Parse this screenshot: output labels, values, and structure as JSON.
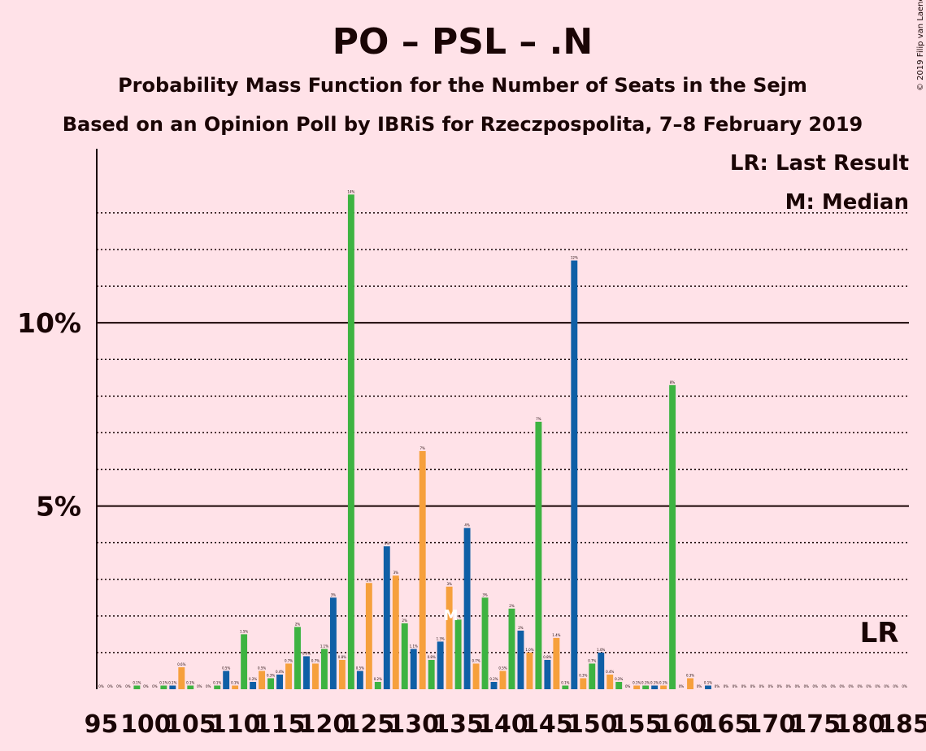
{
  "header": {
    "title": "PO – PSL – .N",
    "subtitle1": "Probability Mass Function for the Number of Seats in the Sejm",
    "subtitle2": "Based on an Opinion Poll by IBRiS for Rzeczpospolita, 7–8 February 2019"
  },
  "legend": {
    "last_result": "LR: Last Result",
    "median": "M: Median"
  },
  "copyright": "© 2019 Filip van Laenen",
  "colors": {
    "background": "#ffe2e8",
    "series": [
      "#f6a03c",
      "#3db341",
      "#0f5fa6"
    ],
    "text": "#1a0505"
  },
  "chart_data": {
    "type": "bar",
    "title": "PO – PSL – .N",
    "xlabel": "",
    "ylabel": "",
    "ylim": [
      0,
      14.75
    ],
    "xlim": [
      94.5,
      185.5
    ],
    "y_ticks": [
      {
        "value": 5,
        "label": "5%"
      },
      {
        "value": 10,
        "label": "10%"
      }
    ],
    "y_minor_gridlines": [
      1,
      2,
      3,
      4,
      6,
      7,
      8,
      9,
      11,
      12,
      13
    ],
    "x_tick_labels": [
      "95",
      "100",
      "105",
      "110",
      "115",
      "120",
      "125",
      "130",
      "135",
      "140",
      "145",
      "150",
      "155",
      "160",
      "165",
      "170",
      "175",
      "180",
      "185"
    ],
    "x_tick_values": [
      95,
      100,
      105,
      110,
      115,
      120,
      125,
      130,
      135,
      140,
      145,
      150,
      155,
      160,
      165,
      170,
      175,
      180,
      185
    ],
    "median_seat": 134,
    "median_label": "M",
    "last_result_label": "LR",
    "last_result_seat": 182,
    "bars": [
      {
        "seat": 95,
        "value": 0.0,
        "label": "0%"
      },
      {
        "seat": 96,
        "value": 0.0,
        "label": "0%"
      },
      {
        "seat": 97,
        "value": 0.0,
        "label": "0%"
      },
      {
        "seat": 98,
        "value": 0.0,
        "label": "0%"
      },
      {
        "seat": 99,
        "value": 0.1,
        "label": "0.1%"
      },
      {
        "seat": 100,
        "value": 0.0,
        "label": "0%"
      },
      {
        "seat": 101,
        "value": 0.0,
        "label": "0%"
      },
      {
        "seat": 102,
        "value": 0.1,
        "label": "0.1%"
      },
      {
        "seat": 103,
        "value": 0.1,
        "label": "0.1%"
      },
      {
        "seat": 104,
        "value": 0.6,
        "label": "0.6%"
      },
      {
        "seat": 105,
        "value": 0.1,
        "label": "0.1%"
      },
      {
        "seat": 106,
        "value": 0.0,
        "label": "0%"
      },
      {
        "seat": 107,
        "value": 0.0,
        "label": "0%"
      },
      {
        "seat": 108,
        "value": 0.1,
        "label": "0.1%"
      },
      {
        "seat": 109,
        "value": 0.5,
        "label": "0.5%"
      },
      {
        "seat": 110,
        "value": 0.1,
        "label": "0.1%"
      },
      {
        "seat": 111,
        "value": 1.5,
        "label": "1.5%"
      },
      {
        "seat": 112,
        "value": 0.2,
        "label": "0.2%"
      },
      {
        "seat": 113,
        "value": 0.5,
        "label": "0.5%"
      },
      {
        "seat": 114,
        "value": 0.3,
        "label": "0.3%"
      },
      {
        "seat": 115,
        "value": 0.4,
        "label": "0.4%"
      },
      {
        "seat": 116,
        "value": 0.7,
        "label": "0.7%"
      },
      {
        "seat": 117,
        "value": 1.7,
        "label": "2%"
      },
      {
        "seat": 118,
        "value": 0.9,
        "label": "0.9%"
      },
      {
        "seat": 119,
        "value": 0.7,
        "label": "0.7%"
      },
      {
        "seat": 120,
        "value": 1.1,
        "label": "1.1%"
      },
      {
        "seat": 121,
        "value": 2.5,
        "label": "3%"
      },
      {
        "seat": 122,
        "value": 0.8,
        "label": "0.8%"
      },
      {
        "seat": 123,
        "value": 13.5,
        "label": "14%"
      },
      {
        "seat": 124,
        "value": 0.5,
        "label": "0.5%"
      },
      {
        "seat": 125,
        "value": 2.9,
        "label": "3%"
      },
      {
        "seat": 126,
        "value": 0.2,
        "label": "0.2%"
      },
      {
        "seat": 127,
        "value": 3.9,
        "label": "4%"
      },
      {
        "seat": 128,
        "value": 3.1,
        "label": "3%"
      },
      {
        "seat": 129,
        "value": 1.8,
        "label": "2%"
      },
      {
        "seat": 130,
        "value": 1.1,
        "label": "1.1%"
      },
      {
        "seat": 131,
        "value": 6.5,
        "label": "7%"
      },
      {
        "seat": 132,
        "value": 0.8,
        "label": "0.8%"
      },
      {
        "seat": 133,
        "value": 1.3,
        "label": "1.3%"
      },
      {
        "seat": 134,
        "value": 2.8,
        "label": "3%"
      },
      {
        "seat": 135,
        "value": 1.9,
        "label": "2%"
      },
      {
        "seat": 136,
        "value": 4.4,
        "label": "4%"
      },
      {
        "seat": 137,
        "value": 0.7,
        "label": "0.7%"
      },
      {
        "seat": 138,
        "value": 2.5,
        "label": "3%"
      },
      {
        "seat": 139,
        "value": 0.2,
        "label": "0.2%"
      },
      {
        "seat": 140,
        "value": 0.5,
        "label": "0.5%"
      },
      {
        "seat": 141,
        "value": 2.2,
        "label": "2%"
      },
      {
        "seat": 142,
        "value": 1.6,
        "label": "2%"
      },
      {
        "seat": 143,
        "value": 1.0,
        "label": "1.0%"
      },
      {
        "seat": 144,
        "value": 7.3,
        "label": "7%"
      },
      {
        "seat": 145,
        "value": 0.8,
        "label": "0.8%"
      },
      {
        "seat": 146,
        "value": 1.4,
        "label": "1.4%"
      },
      {
        "seat": 147,
        "value": 0.1,
        "label": "0.1%"
      },
      {
        "seat": 148,
        "value": 11.7,
        "label": "12%"
      },
      {
        "seat": 149,
        "value": 0.3,
        "label": "0.3%"
      },
      {
        "seat": 150,
        "value": 0.7,
        "label": "0.7%"
      },
      {
        "seat": 151,
        "value": 1.0,
        "label": "1.0%"
      },
      {
        "seat": 152,
        "value": 0.4,
        "label": "0.4%"
      },
      {
        "seat": 153,
        "value": 0.2,
        "label": "0.2%"
      },
      {
        "seat": 154,
        "value": 0.0,
        "label": "0%"
      },
      {
        "seat": 155,
        "value": 0.1,
        "label": "0.1%"
      },
      {
        "seat": 156,
        "value": 0.1,
        "label": "0.1%"
      },
      {
        "seat": 157,
        "value": 0.1,
        "label": "0.1%"
      },
      {
        "seat": 158,
        "value": 0.1,
        "label": "0.1%"
      },
      {
        "seat": 159,
        "value": 8.3,
        "label": "8%"
      },
      {
        "seat": 160,
        "value": 0.0,
        "label": "0%"
      },
      {
        "seat": 161,
        "value": 0.3,
        "label": "0.3%"
      },
      {
        "seat": 162,
        "value": 0.0,
        "label": "0%"
      },
      {
        "seat": 163,
        "value": 0.1,
        "label": "0.1%"
      },
      {
        "seat": 164,
        "value": 0.0,
        "label": "0%"
      },
      {
        "seat": 165,
        "value": 0.0,
        "label": "0%"
      },
      {
        "seat": 166,
        "value": 0.0,
        "label": "0%"
      },
      {
        "seat": 167,
        "value": 0.0,
        "label": "0%"
      },
      {
        "seat": 168,
        "value": 0.0,
        "label": "0%"
      },
      {
        "seat": 169,
        "value": 0.0,
        "label": "0%"
      },
      {
        "seat": 170,
        "value": 0.0,
        "label": "0%"
      },
      {
        "seat": 171,
        "value": 0.0,
        "label": "0%"
      },
      {
        "seat": 172,
        "value": 0.0,
        "label": "0%"
      },
      {
        "seat": 173,
        "value": 0.0,
        "label": "0%"
      },
      {
        "seat": 174,
        "value": 0.0,
        "label": "0%"
      },
      {
        "seat": 175,
        "value": 0.0,
        "label": "0%"
      },
      {
        "seat": 176,
        "value": 0.0,
        "label": "0%"
      },
      {
        "seat": 177,
        "value": 0.0,
        "label": "0%"
      },
      {
        "seat": 178,
        "value": 0.0,
        "label": "0%"
      },
      {
        "seat": 179,
        "value": 0.0,
        "label": "0%"
      },
      {
        "seat": 180,
        "value": 0.0,
        "label": "0%"
      },
      {
        "seat": 181,
        "value": 0.0,
        "label": "0%"
      },
      {
        "seat": 182,
        "value": 0.0,
        "label": "0%"
      },
      {
        "seat": 183,
        "value": 0.0,
        "label": "0%"
      },
      {
        "seat": 184,
        "value": 0.0,
        "label": "0%"
      },
      {
        "seat": 185,
        "value": 0.0,
        "label": "0%"
      }
    ]
  }
}
